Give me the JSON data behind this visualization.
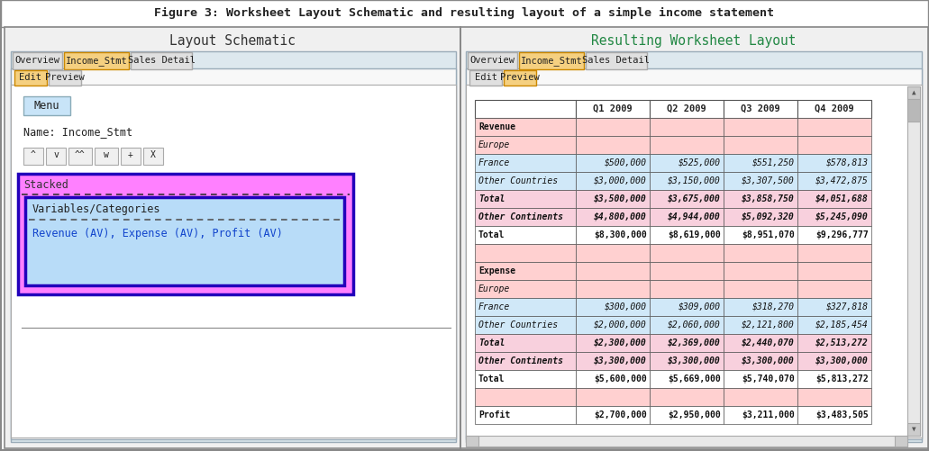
{
  "title": "Figure 3: Worksheet Layout Schematic and resulting layout of a simple income statement",
  "left_panel_title": "Layout Schematic",
  "right_panel_title": "Resulting Worksheet Layout",
  "tabs_left": [
    "Overview",
    "Income_Stmt",
    "Sales Detail"
  ],
  "tabs_right": [
    "Overview",
    "Income_Stmt",
    "Sales Detail"
  ],
  "subtabs_left": [
    "Edit",
    "Preview"
  ],
  "subtabs_right": [
    "Edit",
    "Preview"
  ],
  "active_tab_left": "Income_Stmt",
  "active_tab_right": "Income_Stmt",
  "active_subtab_left": "Edit",
  "active_subtab_right": "Preview",
  "menu_label": "Menu",
  "name_label": "Name: Income_Stmt",
  "buttons": [
    "^",
    "v",
    "^^",
    "w",
    "+",
    "X"
  ],
  "stacked_label": "Stacked",
  "inner_label1": "Variables/Categories",
  "inner_label2": "Revenue (AV), Expense (AV), Profit (AV)",
  "table_headers": [
    "",
    "Q1 2009",
    "Q2 2009",
    "Q3 2009",
    "Q4 2009"
  ],
  "table_rows": [
    {
      "cells": [
        "Revenue",
        "",
        "",
        "",
        ""
      ],
      "type": "header"
    },
    {
      "cells": [
        "Europe",
        "",
        "",
        "",
        ""
      ],
      "type": "subheader"
    },
    {
      "cells": [
        "France",
        "$500,000",
        "$525,000",
        "$551,250",
        "$578,813"
      ],
      "type": "data"
    },
    {
      "cells": [
        "Other Countries",
        "$3,000,000",
        "$3,150,000",
        "$3,307,500",
        "$3,472,875"
      ],
      "type": "data"
    },
    {
      "cells": [
        "Total",
        "$3,500,000",
        "$3,675,000",
        "$3,858,750",
        "$4,051,688"
      ],
      "type": "total"
    },
    {
      "cells": [
        "Other Continents",
        "$4,800,000",
        "$4,944,000",
        "$5,092,320",
        "$5,245,090"
      ],
      "type": "total2"
    },
    {
      "cells": [
        "Total",
        "$8,300,000",
        "$8,619,000",
        "$8,951,070",
        "$9,296,777"
      ],
      "type": "grandtotal"
    },
    {
      "cells": [
        "",
        "",
        "",
        "",
        ""
      ],
      "type": "blank"
    },
    {
      "cells": [
        "Expense",
        "",
        "",
        "",
        ""
      ],
      "type": "header"
    },
    {
      "cells": [
        "Europe",
        "",
        "",
        "",
        ""
      ],
      "type": "subheader"
    },
    {
      "cells": [
        "France",
        "$300,000",
        "$309,000",
        "$318,270",
        "$327,818"
      ],
      "type": "data"
    },
    {
      "cells": [
        "Other Countries",
        "$2,000,000",
        "$2,060,000",
        "$2,121,800",
        "$2,185,454"
      ],
      "type": "data"
    },
    {
      "cells": [
        "Total",
        "$2,300,000",
        "$2,369,000",
        "$2,440,070",
        "$2,513,272"
      ],
      "type": "total"
    },
    {
      "cells": [
        "Other Continents",
        "$3,300,000",
        "$3,300,000",
        "$3,300,000",
        "$3,300,000"
      ],
      "type": "total2"
    },
    {
      "cells": [
        "Total",
        "$5,600,000",
        "$5,669,000",
        "$5,740,070",
        "$5,813,272"
      ],
      "type": "grandtotal"
    },
    {
      "cells": [
        "",
        "",
        "",
        "",
        ""
      ],
      "type": "blank"
    },
    {
      "cells": [
        "Profit",
        "$2,700,000",
        "$2,950,000",
        "$3,211,000",
        "$3,483,505"
      ],
      "type": "profit"
    }
  ],
  "row_colors": {
    "header": "#ffd0d0",
    "subheader": "#ffd0d0",
    "data": "#d0e8f8",
    "total": "#f8d0dd",
    "total2": "#f8d0dd",
    "grandtotal": "#ffffff",
    "blank": "#ffd0d0",
    "profit": "#ffffff"
  },
  "stacked_fill": "#ff80ff",
  "stacked_border": "#2200bb",
  "inner_box_fill": "#b8dcf8",
  "inner_box_border": "#2200bb",
  "tab_active_fill": "#f5d080",
  "tab_active_edge": "#cc8800",
  "tab_inactive_fill": "#e0e0e0",
  "tab_inactive_edge": "#aaaaaa",
  "right_panel_title_color": "#228844",
  "title_color": "#222222"
}
